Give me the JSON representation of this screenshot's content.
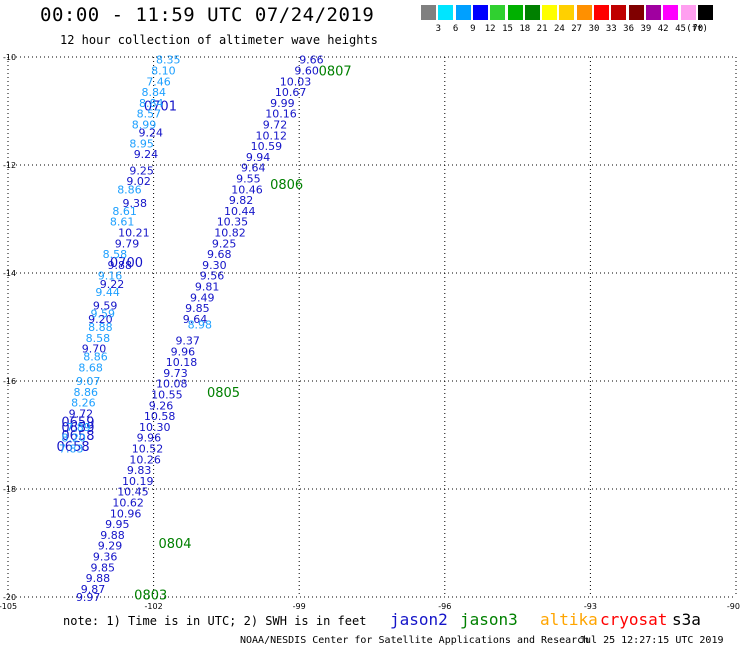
{
  "header": {
    "title": "00:00 - 11:59 UTC 07/24/2019",
    "subtitle": "12 hour collection of altimeter wave heights"
  },
  "color_scale": {
    "unit": "(ft)",
    "bins": [
      {
        "label": "3",
        "color": "#808080"
      },
      {
        "label": "6",
        "color": "#00e5ff"
      },
      {
        "label": "9",
        "color": "#00a0ff"
      },
      {
        "label": "12",
        "color": "#0000ff"
      },
      {
        "label": "15",
        "color": "#30d030"
      },
      {
        "label": "18",
        "color": "#00b000"
      },
      {
        "label": "21",
        "color": "#008000"
      },
      {
        "label": "24",
        "color": "#ffff00"
      },
      {
        "label": "27",
        "color": "#ffd000"
      },
      {
        "label": "30",
        "color": "#ff9000"
      },
      {
        "label": "33",
        "color": "#ff0000"
      },
      {
        "label": "36",
        "color": "#c00000"
      },
      {
        "label": "39",
        "color": "#800000"
      },
      {
        "label": "42",
        "color": "#a000a0"
      },
      {
        "label": "45",
        "color": "#ff00ff"
      },
      {
        "label": "70",
        "color": "#ff9ff0"
      },
      {
        "label": "",
        "color": "#000000"
      }
    ]
  },
  "chart_data": {
    "type": "scatter",
    "xlim": [
      -105,
      -90
    ],
    "ylim": [
      -20,
      -10
    ],
    "x_ticks": [
      -105,
      -102,
      -99,
      -96,
      -93,
      -90
    ],
    "x_tick_labels": [
      "-105",
      "-102",
      "-99",
      "-96",
      "-93",
      "-90"
    ],
    "y_ticks": [
      -10,
      -12,
      -14,
      -16,
      -18,
      -20
    ],
    "y_tick_labels": [
      "-10",
      "-12",
      "-14",
      "-16",
      "-18",
      "-20"
    ],
    "grid": true,
    "series": [
      {
        "name": "jason2",
        "color": "#1414c8",
        "track_labels": [
          {
            "text": "0701",
            "lon": -102.2,
            "lat": -10.9
          },
          {
            "text": "0700",
            "lon": -102.9,
            "lat": -13.8
          },
          {
            "text": "0659",
            "lon": -103.9,
            "lat": -16.75
          },
          {
            "text": "0659",
            "lon": -103.9,
            "lat": -16.85
          },
          {
            "text": "0658",
            "lon": -103.9,
            "lat": -17.0
          },
          {
            "text": "0658",
            "lon": -104.0,
            "lat": -17.2
          }
        ],
        "points": [
          {
            "lon": -102.31,
            "lat": -11.4,
            "text": "9.24"
          },
          {
            "lon": -102.41,
            "lat": -11.8,
            "text": "9.24"
          },
          {
            "lon": -102.5,
            "lat": -12.1,
            "text": "9.25"
          },
          {
            "lon": -102.56,
            "lat": -12.3,
            "text": "9.02"
          },
          {
            "lon": -102.64,
            "lat": -12.7,
            "text": "9.38"
          },
          {
            "lon": -102.73,
            "lat": -13.25,
            "text": "10.21"
          },
          {
            "lon": -102.8,
            "lat": -13.45,
            "text": "9.79"
          },
          {
            "lon": -102.95,
            "lat": -13.85,
            "text": "9.88"
          },
          {
            "lon": -103.11,
            "lat": -14.2,
            "text": "9.22"
          },
          {
            "lon": -103.25,
            "lat": -14.6,
            "text": "9.59"
          },
          {
            "lon": -103.35,
            "lat": -14.85,
            "text": "9.20"
          },
          {
            "lon": -103.48,
            "lat": -15.4,
            "text": "9.70"
          },
          {
            "lon": -103.75,
            "lat": -16.6,
            "text": "9.72"
          }
        ]
      },
      {
        "name": "jason3",
        "color": "#008000",
        "track_labels": [
          {
            "text": "0807",
            "lon": -98.6,
            "lat": -10.25
          },
          {
            "text": "0806",
            "lon": -99.6,
            "lat": -12.35
          },
          {
            "text": "0805",
            "lon": -100.9,
            "lat": -16.2
          },
          {
            "text": "0804",
            "lon": -101.9,
            "lat": -19.0
          },
          {
            "text": "0803",
            "lon": -102.4,
            "lat": -19.95
          }
        ],
        "points": []
      },
      {
        "name": "altika",
        "color": "#ffa500",
        "track_labels": [],
        "points": []
      },
      {
        "name": "cryosat",
        "color": "#ff0000",
        "track_labels": [],
        "points": []
      },
      {
        "name": "s3a",
        "color": "#000000",
        "track_labels": [],
        "points": []
      },
      {
        "name": "",
        "color": "#1414c8",
        "track_labels": [],
        "points": [
          {
            "lon": -99.0,
            "lat": -10.05,
            "text": "9.66"
          },
          {
            "lon": -99.1,
            "lat": -10.25,
            "text": "9.60"
          },
          {
            "lon": -99.4,
            "lat": -10.45,
            "text": "10.03"
          },
          {
            "lon": -99.5,
            "lat": -10.65,
            "text": "10.67"
          },
          {
            "lon": -99.6,
            "lat": -10.85,
            "text": "9.99"
          },
          {
            "lon": -99.7,
            "lat": -11.05,
            "text": "10.16"
          },
          {
            "lon": -99.75,
            "lat": -11.25,
            "text": "9.72"
          },
          {
            "lon": -99.9,
            "lat": -11.45,
            "text": "10.12"
          },
          {
            "lon": -100.0,
            "lat": -11.65,
            "text": "10.59"
          },
          {
            "lon": -100.1,
            "lat": -11.85,
            "text": "9.94"
          },
          {
            "lon": -100.2,
            "lat": -12.05,
            "text": "9.64"
          },
          {
            "lon": -100.3,
            "lat": -12.25,
            "text": "9.55"
          },
          {
            "lon": -100.4,
            "lat": -12.45,
            "text": "10.46"
          },
          {
            "lon": -100.45,
            "lat": -12.65,
            "text": "9.82"
          },
          {
            "lon": -100.55,
            "lat": -12.85,
            "text": "10.44"
          },
          {
            "lon": -100.7,
            "lat": -13.05,
            "text": "10.35"
          },
          {
            "lon": -100.75,
            "lat": -13.25,
            "text": "10.82"
          },
          {
            "lon": -100.8,
            "lat": -13.45,
            "text": "9.25"
          },
          {
            "lon": -100.9,
            "lat": -13.65,
            "text": "9.68"
          },
          {
            "lon": -101.0,
            "lat": -13.85,
            "text": "9.30"
          },
          {
            "lon": -101.05,
            "lat": -14.05,
            "text": "9.56"
          },
          {
            "lon": -101.15,
            "lat": -14.25,
            "text": "9.81"
          },
          {
            "lon": -101.25,
            "lat": -14.45,
            "text": "9.49"
          },
          {
            "lon": -101.35,
            "lat": -14.65,
            "text": "9.85"
          },
          {
            "lon": -101.4,
            "lat": -14.85,
            "text": "9.64"
          },
          {
            "lon": -101.55,
            "lat": -15.25,
            "text": "9.37"
          },
          {
            "lon": -101.65,
            "lat": -15.45,
            "text": "9.96"
          },
          {
            "lon": -101.75,
            "lat": -15.65,
            "text": "10.18"
          },
          {
            "lon": -101.8,
            "lat": -15.85,
            "text": "9.73"
          },
          {
            "lon": -101.95,
            "lat": -16.05,
            "text": "10.08"
          },
          {
            "lon": -102.05,
            "lat": -16.25,
            "text": "10.55"
          },
          {
            "lon": -102.1,
            "lat": -16.45,
            "text": "9.26"
          },
          {
            "lon": -102.2,
            "lat": -16.65,
            "text": "10.58"
          },
          {
            "lon": -102.3,
            "lat": -16.85,
            "text": "10.30"
          },
          {
            "lon": -102.35,
            "lat": -17.05,
            "text": "9.96"
          },
          {
            "lon": -102.45,
            "lat": -17.25,
            "text": "10.52"
          },
          {
            "lon": -102.5,
            "lat": -17.45,
            "text": "10.26"
          },
          {
            "lon": -102.55,
            "lat": -17.65,
            "text": "9.83"
          },
          {
            "lon": -102.65,
            "lat": -17.85,
            "text": "10.19"
          },
          {
            "lon": -102.75,
            "lat": -18.05,
            "text": "10.45"
          },
          {
            "lon": -102.85,
            "lat": -18.25,
            "text": "10.62"
          },
          {
            "lon": -102.9,
            "lat": -18.45,
            "text": "10.96"
          },
          {
            "lon": -103.0,
            "lat": -18.65,
            "text": "9.95"
          },
          {
            "lon": -103.1,
            "lat": -18.85,
            "text": "9.88"
          },
          {
            "lon": -103.15,
            "lat": -19.05,
            "text": "9.29"
          },
          {
            "lon": -103.25,
            "lat": -19.25,
            "text": "9.36"
          },
          {
            "lon": -103.3,
            "lat": -19.45,
            "text": "9.85"
          },
          {
            "lon": -103.4,
            "lat": -19.65,
            "text": "9.88"
          },
          {
            "lon": -103.5,
            "lat": -19.85,
            "text": "9.87"
          },
          {
            "lon": -103.6,
            "lat": -20.0,
            "text": "9.97"
          }
        ]
      },
      {
        "name": "",
        "color": "#1ea0ff",
        "track_labels": [],
        "points": [
          {
            "lon": -101.95,
            "lat": -10.05,
            "text": "8.35"
          },
          {
            "lon": -102.05,
            "lat": -10.25,
            "text": "8.10"
          },
          {
            "lon": -102.15,
            "lat": -10.45,
            "text": "7.46"
          },
          {
            "lon": -102.25,
            "lat": -10.65,
            "text": "8.84"
          },
          {
            "lon": -102.3,
            "lat": -10.85,
            "text": "8.84"
          },
          {
            "lon": -102.35,
            "lat": -11.05,
            "text": "8.57"
          },
          {
            "lon": -102.45,
            "lat": -11.25,
            "text": "8.99"
          },
          {
            "lon": -102.5,
            "lat": -11.6,
            "text": "8.95"
          },
          {
            "lon": -102.75,
            "lat": -12.45,
            "text": "8.86"
          },
          {
            "lon": -102.85,
            "lat": -12.85,
            "text": "8.61"
          },
          {
            "lon": -102.9,
            "lat": -13.05,
            "text": "8.61"
          },
          {
            "lon": -103.05,
            "lat": -13.65,
            "text": "8.58"
          },
          {
            "lon": -103.15,
            "lat": -14.05,
            "text": "9.16"
          },
          {
            "lon": -103.2,
            "lat": -14.35,
            "text": "9.44"
          },
          {
            "lon": -103.3,
            "lat": -14.75,
            "text": "9.59"
          },
          {
            "lon": -103.35,
            "lat": -15.0,
            "text": "8.88"
          },
          {
            "lon": -103.4,
            "lat": -15.2,
            "text": "8.58"
          },
          {
            "lon": -103.45,
            "lat": -15.55,
            "text": "8.86"
          },
          {
            "lon": -103.55,
            "lat": -15.75,
            "text": "8.68"
          },
          {
            "lon": -103.6,
            "lat": -16.0,
            "text": "9.07"
          },
          {
            "lon": -103.65,
            "lat": -16.2,
            "text": "8.86"
          },
          {
            "lon": -103.7,
            "lat": -16.4,
            "text": "8.26"
          },
          {
            "lon": -103.8,
            "lat": -16.85,
            "text": "7.89"
          },
          {
            "lon": -103.9,
            "lat": -17.05,
            "text": "8.20"
          },
          {
            "lon": -103.95,
            "lat": -17.25,
            "text": "7.83"
          },
          {
            "lon": -101.3,
            "lat": -14.95,
            "text": "8.98"
          }
        ]
      }
    ]
  },
  "footer": {
    "note": "note: 1) Time is in UTC; 2) SWH is in feet",
    "credit": "NOAA/NESDIS Center for Satellite Applications and Research",
    "timestamp": "Jul 25 12:27:15 UTC 2019"
  }
}
